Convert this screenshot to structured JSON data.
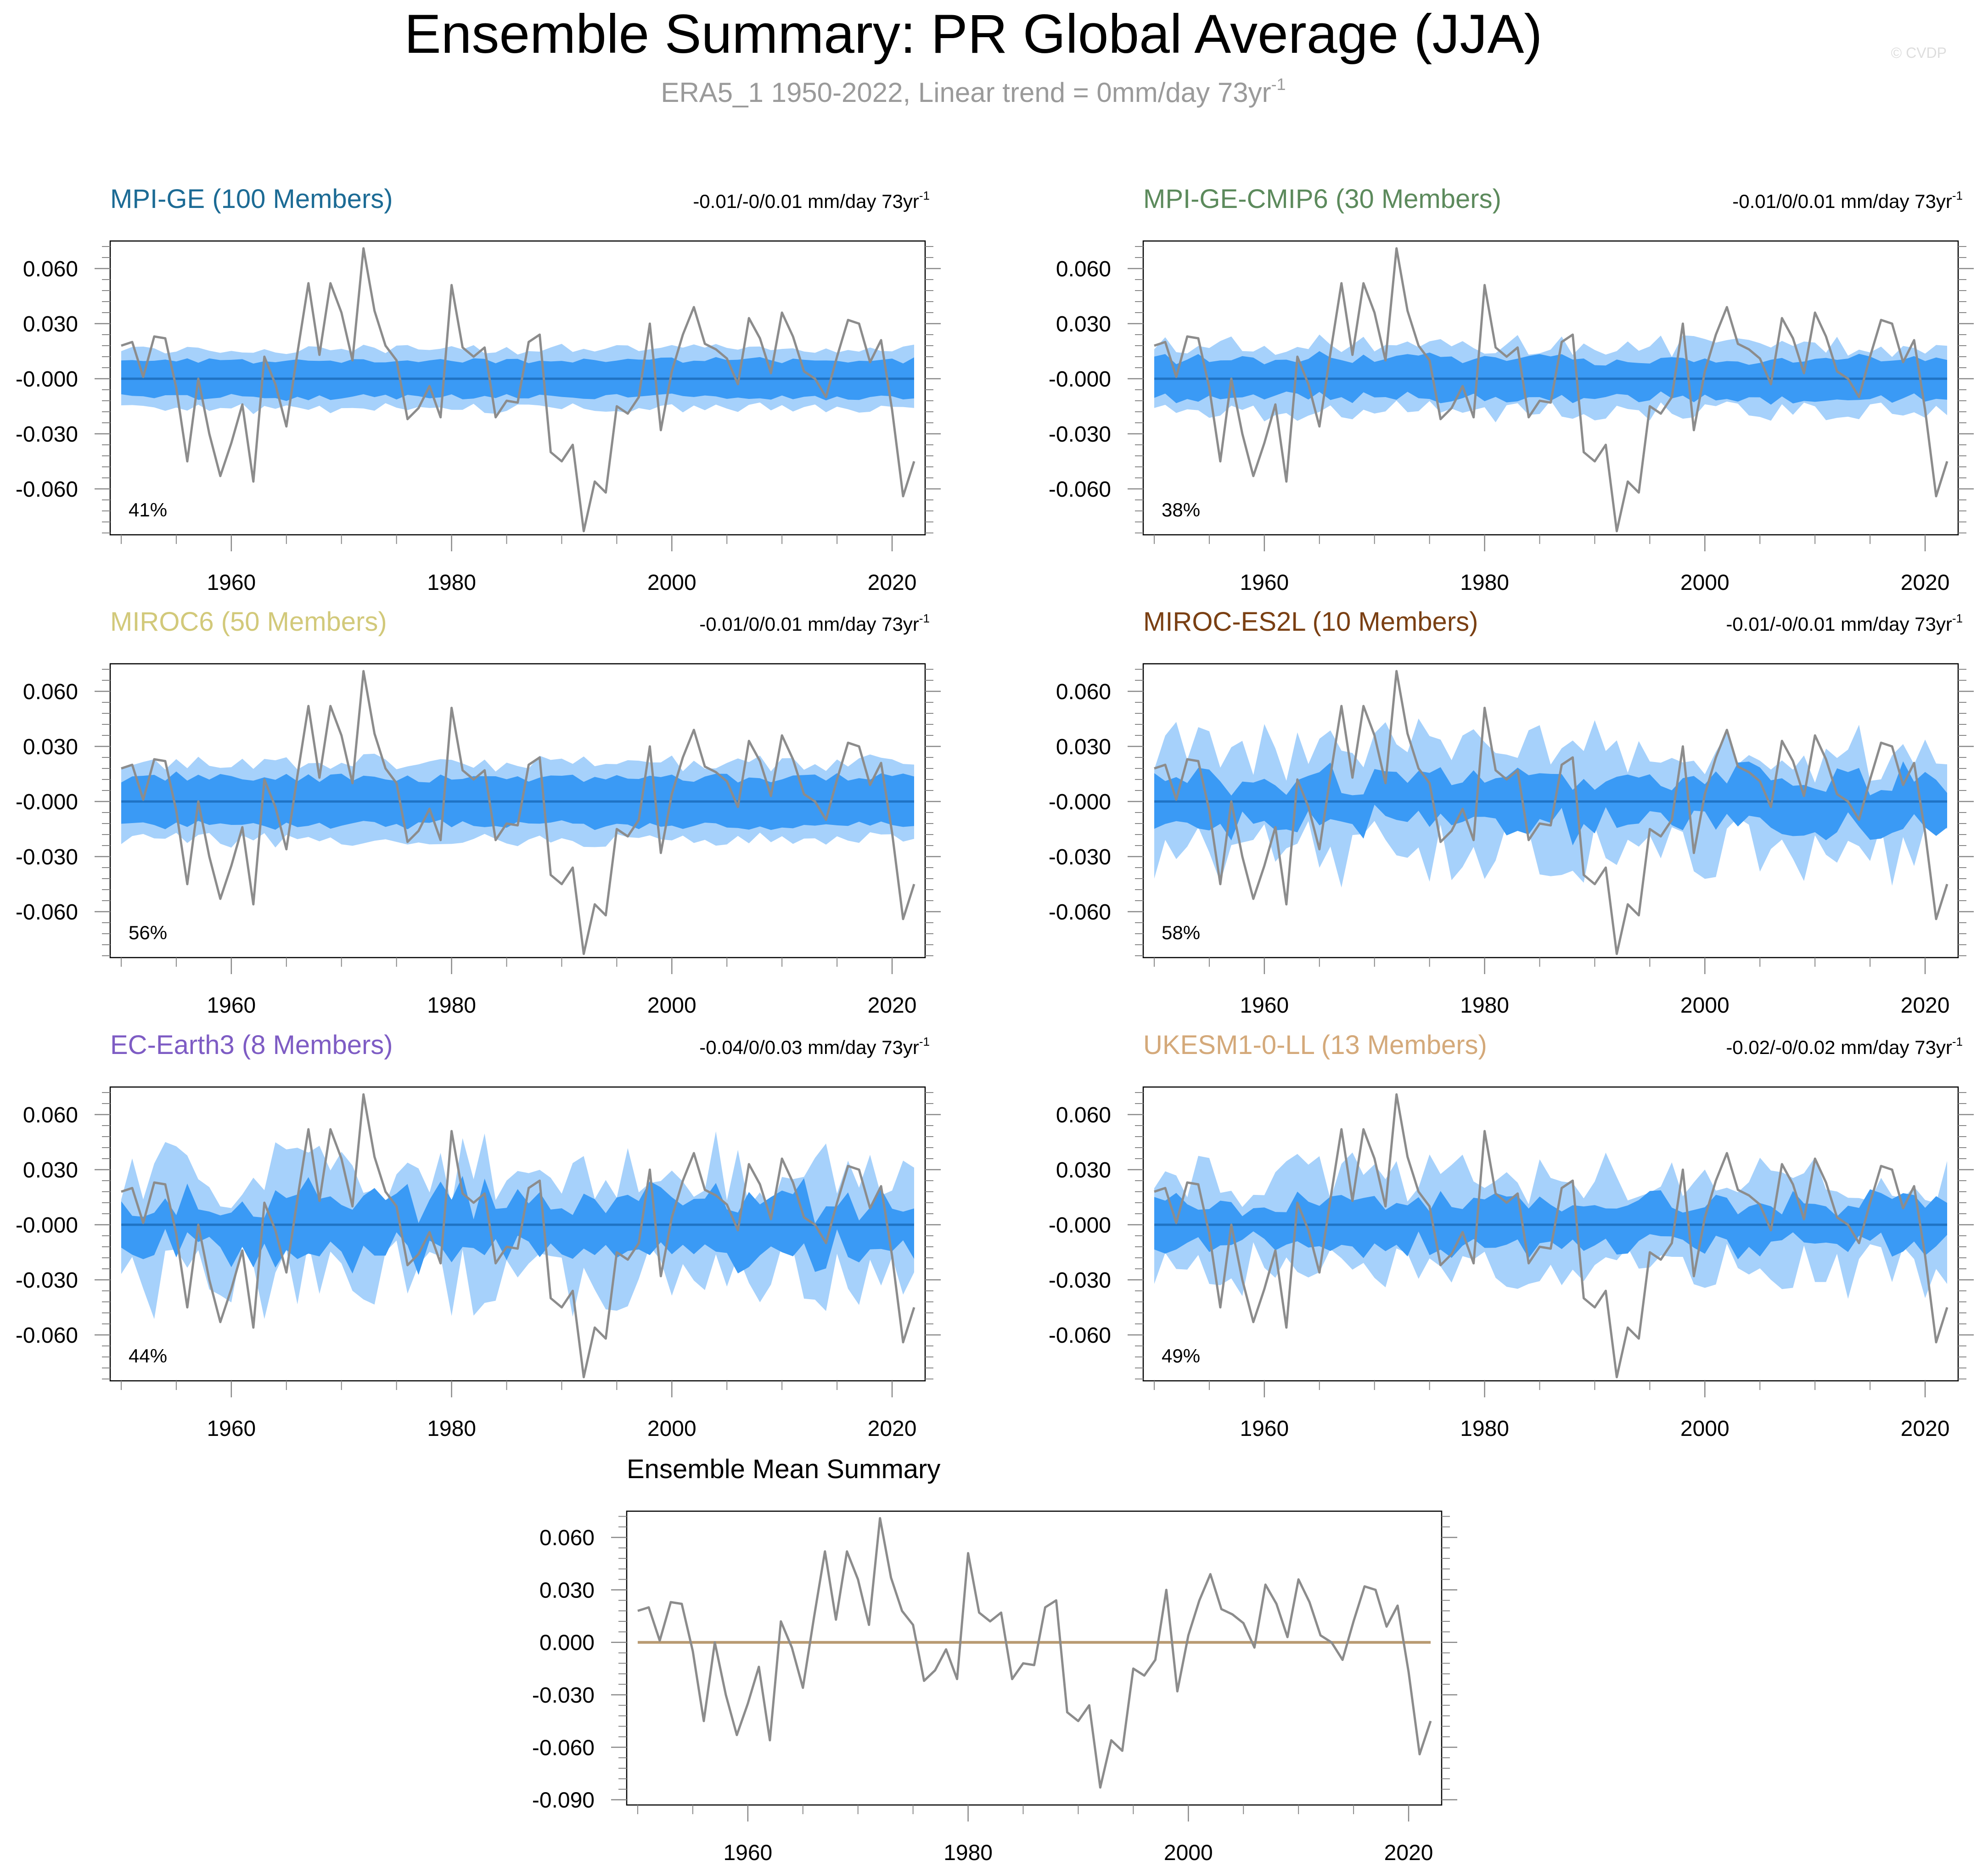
{
  "title": "Ensemble Summary: PR Global Average (JJA)",
  "subtitle_main": "ERA5_1 1950-2022, Linear trend = 0mm/day 73yr",
  "subtitle_sup": "-1",
  "watermark": "© CVDP",
  "colors": {
    "obs_line": "#8c8c8c",
    "band_outer": "#a6d1fb",
    "band_inner": "#3a9af5",
    "mean_line": "#1f73c4",
    "ensemble_mean_line": "#b89a72"
  },
  "chart_data": [
    {
      "id": "mpi-ge",
      "type": "line",
      "title": "MPI-GE (100 Members)",
      "title_color": "#1c6b95",
      "trend_text": "-0.01/-0/0.01 mm/day 73yr",
      "trend_sup": "-1",
      "percent_label": "41%",
      "band_seed": 11,
      "band_inner_halfwidth": 0.01,
      "band_outer_halfwidth": 0.016,
      "band_variability": 0.1,
      "xlim": [
        1949,
        2023
      ],
      "ylim": [
        -0.085,
        0.075
      ],
      "yticks": [
        0.06,
        0.03,
        0.0,
        -0.03,
        -0.06
      ],
      "ytick_labels": [
        "0.060",
        "0.030",
        "-0.000",
        "-0.030",
        "-0.060"
      ],
      "xticks": [
        1960,
        1980,
        2000,
        2020
      ],
      "xtick_labels": [
        "1960",
        "1980",
        "2000",
        "2020"
      ]
    },
    {
      "id": "mpi-ge-cmip6",
      "type": "line",
      "title": "MPI-GE-CMIP6 (30 Members)",
      "title_color": "#5c8a5c",
      "trend_text": "-0.01/0/0.01 mm/day 73yr",
      "trend_sup": "-1",
      "percent_label": "38%",
      "band_seed": 23,
      "band_inner_halfwidth": 0.011,
      "band_outer_halfwidth": 0.018,
      "band_variability": 0.18,
      "xlim": [
        1949,
        2023
      ],
      "ylim": [
        -0.085,
        0.075
      ],
      "yticks": [
        0.06,
        0.03,
        0.0,
        -0.03,
        -0.06
      ],
      "ytick_labels": [
        "0.060",
        "0.030",
        "-0.000",
        "-0.030",
        "-0.060"
      ],
      "xticks": [
        1960,
        1980,
        2000,
        2020
      ],
      "xtick_labels": [
        "1960",
        "1980",
        "2000",
        "2020"
      ]
    },
    {
      "id": "miroc6",
      "type": "line",
      "title": "MIROC6 (50 Members)",
      "title_color": "#d2c97a",
      "trend_text": "-0.01/0/0.01 mm/day 73yr",
      "trend_sup": "-1",
      "percent_label": "56%",
      "band_seed": 37,
      "band_inner_halfwidth": 0.013,
      "band_outer_halfwidth": 0.021,
      "band_variability": 0.12,
      "xlim": [
        1949,
        2023
      ],
      "ylim": [
        -0.085,
        0.075
      ],
      "yticks": [
        0.06,
        0.03,
        0.0,
        -0.03,
        -0.06
      ],
      "ytick_labels": [
        "0.060",
        "0.030",
        "-0.000",
        "-0.030",
        "-0.060"
      ],
      "xticks": [
        1960,
        1980,
        2000,
        2020
      ],
      "xtick_labels": [
        "1960",
        "1980",
        "2000",
        "2020"
      ]
    },
    {
      "id": "miroc-es2l",
      "type": "line",
      "title": "MIROC-ES2L (10 Members)",
      "title_color": "#7a3f12",
      "trend_text": "-0.01/-0/0.01 mm/day 73yr",
      "trend_sup": "-1",
      "percent_label": "58%",
      "band_seed": 51,
      "band_inner_halfwidth": 0.013,
      "band_outer_halfwidth": 0.027,
      "band_variability": 0.4,
      "xlim": [
        1949,
        2023
      ],
      "ylim": [
        -0.085,
        0.075
      ],
      "yticks": [
        0.06,
        0.03,
        0.0,
        -0.03,
        -0.06
      ],
      "ytick_labels": [
        "0.060",
        "0.030",
        "-0.000",
        "-0.030",
        "-0.060"
      ],
      "xticks": [
        1960,
        1980,
        2000,
        2020
      ],
      "xtick_labels": [
        "1960",
        "1980",
        "2000",
        "2020"
      ]
    },
    {
      "id": "ec-earth3",
      "type": "line",
      "title": "EC-Earth3 (8 Members)",
      "title_color": "#7e5cc4",
      "trend_text": "-0.04/0/0.03 mm/day 73yr",
      "trend_sup": "-1",
      "percent_label": "44%",
      "band_seed": 67,
      "band_inner_halfwidth": 0.014,
      "band_outer_halfwidth": 0.028,
      "band_variability": 0.45,
      "xlim": [
        1949,
        2023
      ],
      "ylim": [
        -0.085,
        0.075
      ],
      "yticks": [
        0.06,
        0.03,
        0.0,
        -0.03,
        -0.06
      ],
      "ytick_labels": [
        "0.060",
        "0.030",
        "-0.000",
        "-0.030",
        "-0.060"
      ],
      "xticks": [
        1960,
        1980,
        2000,
        2020
      ],
      "xtick_labels": [
        "1960",
        "1980",
        "2000",
        "2020"
      ]
    },
    {
      "id": "ukesm1-0-ll",
      "type": "line",
      "title": "UKESM1-0-LL (13 Members)",
      "title_color": "#d4a97a",
      "trend_text": "-0.02/-0/0.02 mm/day 73yr",
      "trend_sup": "-1",
      "percent_label": "49%",
      "band_seed": 83,
      "band_inner_halfwidth": 0.012,
      "band_outer_halfwidth": 0.025,
      "band_variability": 0.35,
      "xlim": [
        1949,
        2023
      ],
      "ylim": [
        -0.085,
        0.075
      ],
      "yticks": [
        0.06,
        0.03,
        0.0,
        -0.03,
        -0.06
      ],
      "ytick_labels": [
        "0.060",
        "0.030",
        "-0.000",
        "-0.030",
        "-0.060"
      ],
      "xticks": [
        1960,
        1980,
        2000,
        2020
      ],
      "xtick_labels": [
        "1960",
        "1980",
        "2000",
        "2020"
      ]
    },
    {
      "id": "ensemble-mean",
      "type": "line",
      "title": "Ensemble Mean Summary",
      "title_color": "#000000",
      "xlim": [
        1949,
        2023
      ],
      "ylim": [
        -0.093,
        0.075
      ],
      "yticks": [
        0.06,
        0.03,
        0.0,
        -0.03,
        -0.06,
        -0.09
      ],
      "ytick_labels": [
        "0.060",
        "0.030",
        "0.000",
        "-0.030",
        "-0.060",
        "-0.090"
      ],
      "xticks": [
        1960,
        1980,
        2000,
        2020
      ],
      "xtick_labels": [
        "1960",
        "1980",
        "2000",
        "2020"
      ]
    }
  ],
  "observations": {
    "name": "ERA5_1",
    "years": [
      1950,
      1951,
      1952,
      1953,
      1954,
      1955,
      1956,
      1957,
      1958,
      1959,
      1960,
      1961,
      1962,
      1963,
      1964,
      1965,
      1966,
      1967,
      1968,
      1969,
      1970,
      1971,
      1972,
      1973,
      1974,
      1975,
      1976,
      1977,
      1978,
      1979,
      1980,
      1981,
      1982,
      1983,
      1984,
      1985,
      1986,
      1987,
      1988,
      1989,
      1990,
      1991,
      1992,
      1993,
      1994,
      1995,
      1996,
      1997,
      1998,
      1999,
      2000,
      2001,
      2002,
      2003,
      2004,
      2005,
      2006,
      2007,
      2008,
      2009,
      2010,
      2011,
      2012,
      2013,
      2014,
      2015,
      2016,
      2017,
      2018,
      2019,
      2020,
      2021,
      2022
    ],
    "values": [
      0.018,
      0.02,
      0.001,
      0.023,
      0.022,
      -0.005,
      -0.045,
      0.0,
      -0.03,
      -0.053,
      -0.035,
      -0.014,
      -0.056,
      0.012,
      -0.003,
      -0.026,
      0.014,
      0.052,
      0.013,
      0.052,
      0.036,
      0.01,
      0.071,
      0.037,
      0.018,
      0.01,
      -0.022,
      -0.016,
      -0.004,
      -0.021,
      0.051,
      0.017,
      0.012,
      0.017,
      -0.021,
      -0.012,
      -0.013,
      0.02,
      0.024,
      -0.04,
      -0.045,
      -0.036,
      -0.083,
      -0.056,
      -0.062,
      -0.015,
      -0.019,
      -0.01,
      0.03,
      -0.028,
      0.004,
      0.024,
      0.039,
      0.019,
      0.016,
      0.011,
      -0.003,
      0.033,
      0.022,
      0.003,
      0.036,
      0.023,
      0.004,
      0.0,
      -0.01,
      0.012,
      0.032,
      0.03,
      0.009,
      0.021,
      -0.017,
      -0.064,
      -0.045
    ]
  }
}
